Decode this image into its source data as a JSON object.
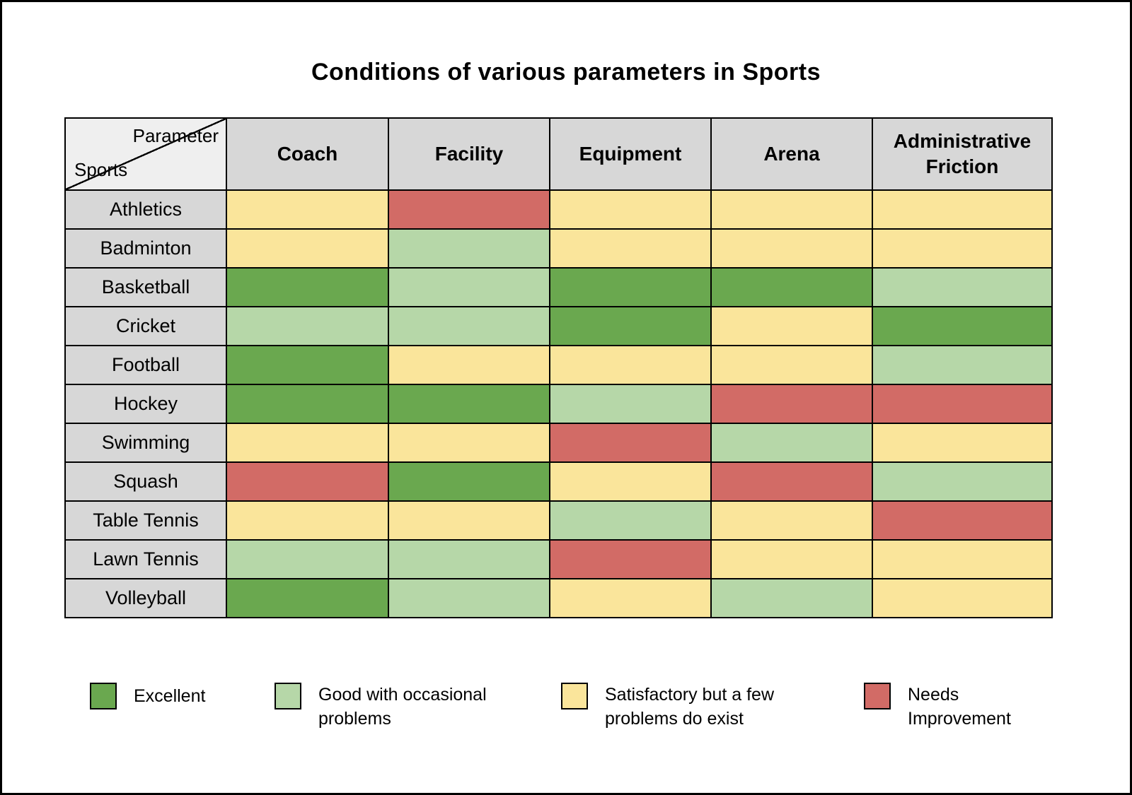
{
  "title": "Conditions of various parameters in Sports",
  "corner": {
    "top_label": "Parameter",
    "bottom_label": "Sports"
  },
  "chart_data": {
    "type": "heatmap",
    "title": "Conditions of various parameters in Sports",
    "columns": [
      "Coach",
      "Facility",
      "Equipment",
      "Arena",
      "Administrative Friction"
    ],
    "rows": [
      "Athletics",
      "Badminton",
      "Basketball",
      "Cricket",
      "Football",
      "Hockey",
      "Swimming",
      "Squash",
      "Table Tennis",
      "Lawn Tennis",
      "Volleyball"
    ],
    "values": [
      [
        "satisfactory",
        "needs_improvement",
        "satisfactory",
        "satisfactory",
        "satisfactory"
      ],
      [
        "satisfactory",
        "good",
        "satisfactory",
        "satisfactory",
        "satisfactory"
      ],
      [
        "excellent",
        "good",
        "excellent",
        "excellent",
        "good"
      ],
      [
        "good",
        "good",
        "excellent",
        "satisfactory",
        "excellent"
      ],
      [
        "excellent",
        "satisfactory",
        "satisfactory",
        "satisfactory",
        "good"
      ],
      [
        "excellent",
        "excellent",
        "good",
        "needs_improvement",
        "needs_improvement"
      ],
      [
        "satisfactory",
        "satisfactory",
        "needs_improvement",
        "good",
        "satisfactory"
      ],
      [
        "needs_improvement",
        "excellent",
        "satisfactory",
        "needs_improvement",
        "good"
      ],
      [
        "satisfactory",
        "satisfactory",
        "good",
        "satisfactory",
        "needs_improvement"
      ],
      [
        "good",
        "good",
        "needs_improvement",
        "satisfactory",
        "satisfactory"
      ],
      [
        "excellent",
        "good",
        "satisfactory",
        "good",
        "satisfactory"
      ]
    ],
    "legend_position": "bottom"
  },
  "legend": [
    {
      "key": "excellent",
      "label": "Excellent"
    },
    {
      "key": "good",
      "label": "Good with occasional problems"
    },
    {
      "key": "satisfactory",
      "label": "Satisfactory but a few problems do exist"
    },
    {
      "key": "needs_improvement",
      "label": "Needs Improvement"
    }
  ],
  "colors": {
    "excellent": "#6aa84f",
    "good": "#b6d7a8",
    "satisfactory": "#fae59b",
    "needs_improvement": "#d26b66",
    "header_bg": "#d7d7d7",
    "corner_bg": "#efefef",
    "border": "#000000"
  }
}
